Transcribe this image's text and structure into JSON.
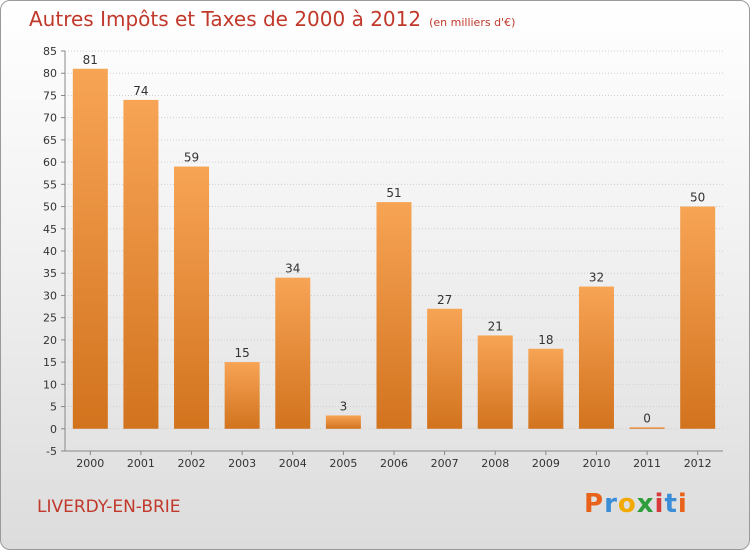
{
  "header": {
    "title": "Autres Impôts et Taxes de 2000 à 2012",
    "unit": "(en milliers d'€)"
  },
  "commune": "LIVERDY-EN-BRIE",
  "logo": {
    "letters": [
      "P",
      "r",
      "o",
      "x",
      "i",
      "t",
      "i"
    ],
    "colors": [
      "#e8621a",
      "#3a8dd6",
      "#f2a900",
      "#2e9e3a",
      "#d63a3a",
      "#3a8dd6",
      "#e8621a"
    ]
  },
  "colors": {
    "bar_light": "#f7a455",
    "bar_dark": "#d2731e",
    "text_red": "#c0392b"
  },
  "chart_data": {
    "type": "bar",
    "categories": [
      "2000",
      "2001",
      "2002",
      "2003",
      "2004",
      "2005",
      "2006",
      "2007",
      "2008",
      "2009",
      "2010",
      "2011",
      "2012"
    ],
    "values": [
      81,
      74,
      59,
      15,
      34,
      3,
      51,
      27,
      21,
      18,
      32,
      0,
      50
    ],
    "ylim": [
      -5,
      85
    ],
    "yticks": [
      -5,
      0,
      5,
      10,
      15,
      20,
      25,
      30,
      35,
      40,
      45,
      50,
      55,
      60,
      65,
      70,
      75,
      80,
      85
    ],
    "grid": true
  }
}
